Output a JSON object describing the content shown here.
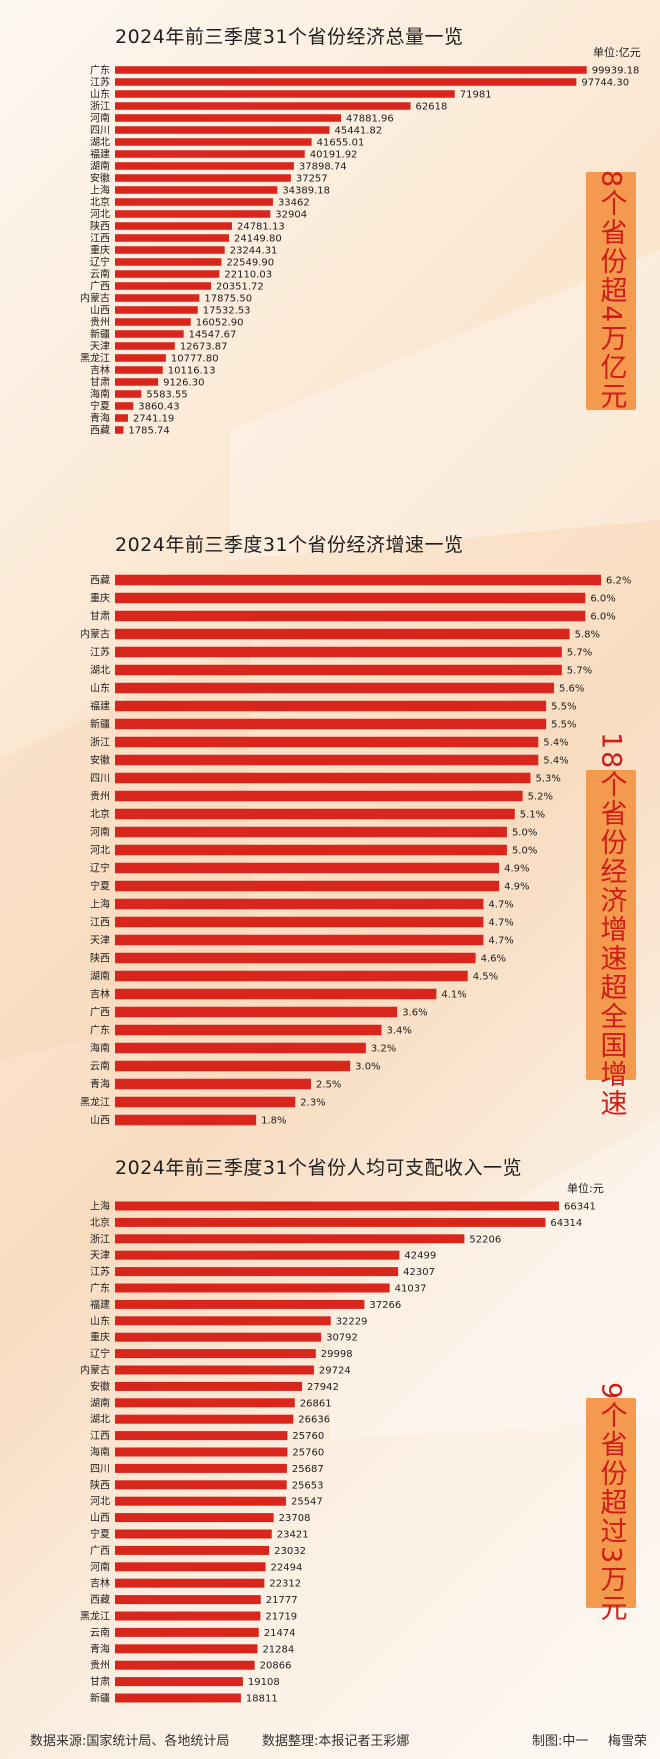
{
  "colors": {
    "bar": "#d9261c",
    "side_box": "#f39a4f",
    "side_text": "#cf1d19",
    "text": "#1e1e1e"
  },
  "chart_data": [
    {
      "type": "bar",
      "orientation": "horizontal",
      "title": "2024年前三季度31个省份经济总量一览",
      "unit": "单位:亿元",
      "annotation": "8个省份超4万亿元",
      "categories": [
        "广东",
        "江苏",
        "山东",
        "浙江",
        "河南",
        "四川",
        "湖北",
        "福建",
        "湖南",
        "安徽",
        "上海",
        "北京",
        "河北",
        "陕西",
        "江西",
        "重庆",
        "辽宁",
        "云南",
        "广西",
        "内蒙古",
        "山西",
        "贵州",
        "新疆",
        "天津",
        "黑龙江",
        "吉林",
        "甘肃",
        "海南",
        "宁夏",
        "青海",
        "西藏"
      ],
      "labels": [
        "99939.18",
        "97744.30",
        "71981",
        "62618",
        "47881.96",
        "45441.82",
        "41655.01",
        "40191.92",
        "37898.74",
        "37257",
        "34389.18",
        "33462",
        "32904",
        "24781.13",
        "24149.80",
        "23244.31",
        "22549.90",
        "22110.03",
        "20351.72",
        "17875.50",
        "17532.53",
        "16052.90",
        "14547.67",
        "12673.87",
        "10777.80",
        "10116.13",
        "9126.30",
        "5583.55",
        "3860.43",
        "2741.19",
        "1785.74"
      ],
      "values": [
        99939.18,
        97744.3,
        71981,
        62618,
        47881.96,
        45441.82,
        41655.01,
        40191.92,
        37898.74,
        37257,
        34389.18,
        33462,
        32904,
        24781.13,
        24149.8,
        23244.31,
        22549.9,
        22110.03,
        20351.72,
        17875.5,
        17532.53,
        16052.9,
        14547.67,
        12673.87,
        10777.8,
        10116.13,
        9126.3,
        5583.55,
        3860.43,
        2741.19,
        1785.74
      ],
      "xlim": [
        0,
        100000
      ]
    },
    {
      "type": "bar",
      "orientation": "horizontal",
      "title": "2024年前三季度31个省份经济增速一览",
      "unit": "",
      "annotation": "18个省份经济增速超全国增速",
      "categories": [
        "西藏",
        "重庆",
        "甘肃",
        "内蒙古",
        "江苏",
        "湖北",
        "山东",
        "福建",
        "新疆",
        "浙江",
        "安徽",
        "四川",
        "贵州",
        "北京",
        "河南",
        "河北",
        "辽宁",
        "宁夏",
        "上海",
        "江西",
        "天津",
        "陕西",
        "湖南",
        "吉林",
        "广西",
        "广东",
        "海南",
        "云南",
        "青海",
        "黑龙江",
        "山西"
      ],
      "labels": [
        "6.2%",
        "6.0%",
        "6.0%",
        "5.8%",
        "5.7%",
        "5.7%",
        "5.6%",
        "5.5%",
        "5.5%",
        "5.4%",
        "5.4%",
        "5.3%",
        "5.2%",
        "5.1%",
        "5.0%",
        "5.0%",
        "4.9%",
        "4.9%",
        "4.7%",
        "4.7%",
        "4.7%",
        "4.6%",
        "4.5%",
        "4.1%",
        "3.6%",
        "3.4%",
        "3.2%",
        "3.0%",
        "2.5%",
        "2.3%",
        "1.8%"
      ],
      "values": [
        6.2,
        6.0,
        6.0,
        5.8,
        5.7,
        5.7,
        5.6,
        5.5,
        5.5,
        5.4,
        5.4,
        5.3,
        5.2,
        5.1,
        5.0,
        5.0,
        4.9,
        4.9,
        4.7,
        4.7,
        4.7,
        4.6,
        4.5,
        4.1,
        3.6,
        3.4,
        3.2,
        3.0,
        2.5,
        2.3,
        1.8
      ],
      "xlim": [
        0,
        6.2
      ]
    },
    {
      "type": "bar",
      "orientation": "horizontal",
      "title": "2024年前三季度31个省份人均可支配收入一览",
      "unit": "单位:元",
      "annotation": "9个省份超过3万元",
      "categories": [
        "上海",
        "北京",
        "浙江",
        "天津",
        "江苏",
        "广东",
        "福建",
        "山东",
        "重庆",
        "辽宁",
        "内蒙古",
        "安徽",
        "湖南",
        "湖北",
        "江西",
        "海南",
        "四川",
        "陕西",
        "河北",
        "山西",
        "宁夏",
        "广西",
        "河南",
        "吉林",
        "西藏",
        "黑龙江",
        "云南",
        "青海",
        "贵州",
        "甘肃",
        "新疆"
      ],
      "labels": [
        "66341",
        "64314",
        "52206",
        "42499",
        "42307",
        "41037",
        "37266",
        "32229",
        "30792",
        "29998",
        "29724",
        "27942",
        "26861",
        "26636",
        "25760",
        "25760",
        "25687",
        "25653",
        "25547",
        "23708",
        "23421",
        "23032",
        "22494",
        "22312",
        "21777",
        "21719",
        "21474",
        "21284",
        "20866",
        "19108",
        "18811"
      ],
      "values": [
        66341,
        64314,
        52206,
        42499,
        42307,
        41037,
        37266,
        32229,
        30792,
        29998,
        29724,
        27942,
        26861,
        26636,
        25760,
        25760,
        25687,
        25653,
        25547,
        23708,
        23421,
        23032,
        22494,
        22312,
        21777,
        21719,
        21474,
        21284,
        20866,
        19108,
        18811
      ],
      "xlim": [
        0,
        66341
      ]
    }
  ],
  "footer": {
    "source": "数据来源:国家统计局、各地统计局",
    "editor": "数据整理:本报记者王彩娜",
    "design": "制图:中一",
    "designer2": "梅雪荣"
  }
}
